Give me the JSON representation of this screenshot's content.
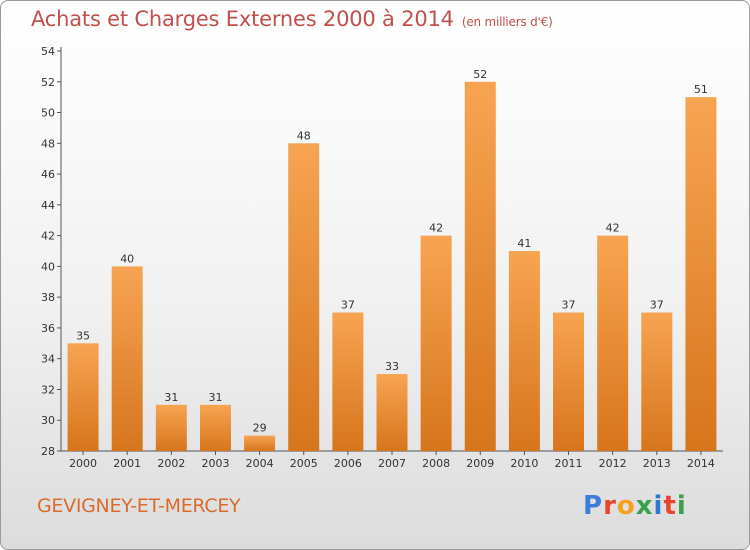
{
  "title": "Achats et Charges Externes 2000 à 2014",
  "unit_note": "(en milliers d'€)",
  "commune": "GEVIGNEY-ET-MERCEY",
  "logo_text": "Proxiti",
  "colors": {
    "title": "#c0504d",
    "commune": "#d96b2b",
    "bar_top": "#f7a452",
    "bar_bottom": "#d7751c",
    "logo": [
      "#3b7dd8",
      "#e8452c",
      "#f5a11a",
      "#3aa14a",
      "#2c7bd1",
      "#e8452c",
      "#3aa14a"
    ]
  },
  "chart_data": {
    "type": "bar",
    "title": "Achats et Charges Externes 2000 à 2014",
    "subtitle": "(en milliers d'€)",
    "categories": [
      "2000",
      "2001",
      "2002",
      "2003",
      "2004",
      "2005",
      "2006",
      "2007",
      "2008",
      "2009",
      "2010",
      "2011",
      "2012",
      "2013",
      "2014"
    ],
    "values": [
      35,
      40,
      31,
      31,
      29,
      48,
      37,
      33,
      42,
      52,
      41,
      37,
      42,
      37,
      51
    ],
    "ylim": [
      28,
      54
    ],
    "yticks": [
      28,
      30,
      32,
      34,
      36,
      38,
      40,
      42,
      44,
      46,
      48,
      50,
      52,
      54
    ],
    "grid": false,
    "xlabel": "",
    "ylabel": ""
  }
}
